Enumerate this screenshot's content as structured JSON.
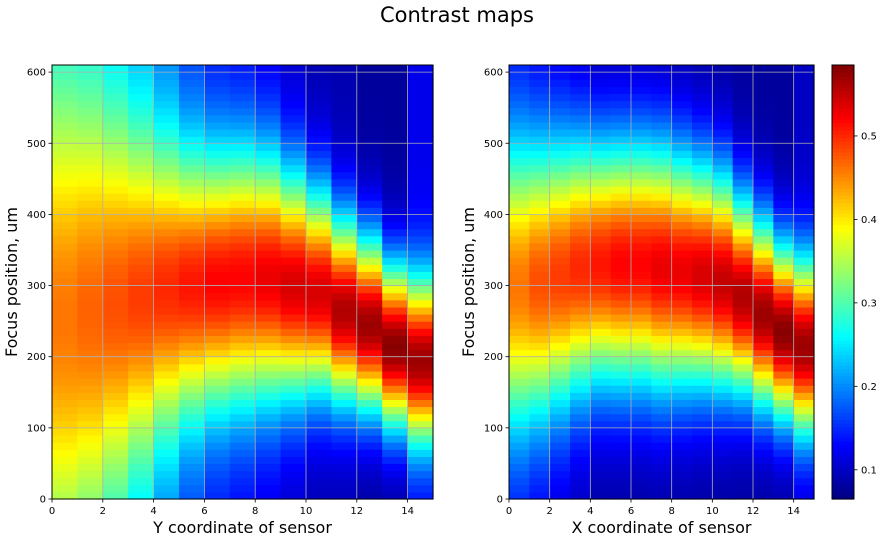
{
  "figure_title": "Contrast maps",
  "chart_data": [
    {
      "type": "heatmap",
      "xlabel": "Y coordinate of sensor",
      "ylabel": "Focus position, um",
      "xlim": [
        0,
        15
      ],
      "ylim": [
        0,
        610
      ],
      "xticks": [
        0,
        2,
        4,
        6,
        8,
        10,
        12,
        14
      ],
      "yticks": [
        0,
        100,
        200,
        300,
        400,
        500,
        600
      ],
      "grid": true,
      "x_bins": 15,
      "y_bins": 61,
      "cell_model": {
        "peak_focus_um": [
          255,
          265,
          275,
          285,
          295,
          300,
          305,
          310,
          310,
          300,
          290,
          265,
          245,
          215,
          195
        ],
        "peak_value": [
          0.46,
          0.47,
          0.48,
          0.49,
          0.5,
          0.51,
          0.52,
          0.52,
          0.53,
          0.54,
          0.54,
          0.56,
          0.57,
          0.58,
          0.57
        ],
        "width_um": [
          230,
          210,
          185,
          160,
          140,
          130,
          125,
          125,
          120,
          110,
          100,
          90,
          85,
          80,
          80
        ],
        "baseline": [
          0.22,
          0.22,
          0.21,
          0.2,
          0.18,
          0.15,
          0.13,
          0.12,
          0.11,
          0.1,
          0.09,
          0.09,
          0.08,
          0.08,
          0.12
        ]
      }
    },
    {
      "type": "heatmap",
      "xlabel": "X coordinate of sensor",
      "ylabel": "Focus position, um",
      "xlim": [
        0,
        15
      ],
      "ylim": [
        0,
        610
      ],
      "xticks": [
        0,
        2,
        4,
        6,
        8,
        10,
        12,
        14
      ],
      "yticks": [
        0,
        100,
        200,
        300,
        400,
        500,
        600
      ],
      "grid": true,
      "x_bins": 15,
      "y_bins": 61,
      "cell_model": {
        "peak_focus_um": [
          300,
          305,
          315,
          325,
          330,
          330,
          330,
          325,
          320,
          315,
          305,
          285,
          260,
          235,
          215
        ],
        "peak_value": [
          0.46,
          0.48,
          0.49,
          0.5,
          0.51,
          0.52,
          0.52,
          0.53,
          0.53,
          0.54,
          0.55,
          0.56,
          0.57,
          0.58,
          0.57
        ],
        "width_um": [
          140,
          135,
          130,
          125,
          120,
          120,
          120,
          120,
          115,
          110,
          105,
          95,
          90,
          85,
          85
        ],
        "baseline": [
          0.12,
          0.11,
          0.1,
          0.09,
          0.08,
          0.08,
          0.08,
          0.08,
          0.08,
          0.08,
          0.08,
          0.08,
          0.08,
          0.08,
          0.1
        ]
      }
    }
  ],
  "colorbar": {
    "colormap": "jet",
    "vmin": 0.065,
    "vmax": 0.585,
    "ticks": [
      0.1,
      0.2,
      0.3,
      0.4,
      0.5
    ],
    "tick_labels": [
      "0.1",
      "0.2",
      "0.3",
      "0.4",
      "0.5"
    ]
  },
  "colors": {
    "grid": "#b0b0b0",
    "axes": "#000000",
    "background": "#ffffff"
  }
}
